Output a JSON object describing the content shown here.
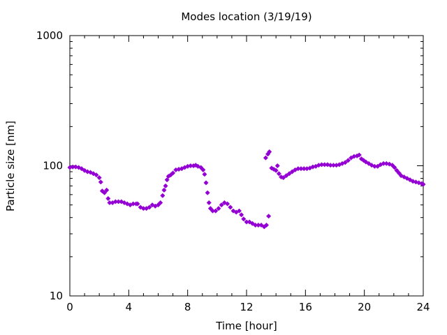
{
  "chart_data": {
    "type": "scatter",
    "title": "Modes location (3/19/19)",
    "xlabel": "Time [hour]",
    "ylabel": "Particle size [nm]",
    "xlim": [
      0,
      24
    ],
    "ylim": [
      10,
      1000
    ],
    "yscale": "log",
    "grid": false,
    "marker_color": "#9400d3",
    "x_ticks": [
      {
        "value": 0,
        "label": "0"
      },
      {
        "value": 4,
        "label": "4"
      },
      {
        "value": 8,
        "label": "8"
      },
      {
        "value": 12,
        "label": "12"
      },
      {
        "value": 16,
        "label": "16"
      },
      {
        "value": 20,
        "label": "20"
      },
      {
        "value": 24,
        "label": "24"
      }
    ],
    "y_ticks": [
      {
        "value": 10,
        "label": "10"
      },
      {
        "value": 100,
        "label": "100"
      },
      {
        "value": 1000,
        "label": "1000"
      }
    ],
    "series": [
      {
        "points": [
          [
            0.0,
            97
          ],
          [
            0.2,
            98
          ],
          [
            0.4,
            98
          ],
          [
            0.6,
            97
          ],
          [
            0.8,
            95
          ],
          [
            1.0,
            92
          ],
          [
            1.2,
            90
          ],
          [
            1.4,
            89
          ],
          [
            1.6,
            87
          ],
          [
            1.8,
            85
          ],
          [
            2.0,
            81
          ],
          [
            2.1,
            75
          ],
          [
            2.2,
            64
          ],
          [
            2.35,
            62
          ],
          [
            2.5,
            65
          ],
          [
            2.6,
            56
          ],
          [
            2.7,
            52
          ],
          [
            2.9,
            52
          ],
          [
            3.1,
            53
          ],
          [
            3.3,
            53
          ],
          [
            3.5,
            53
          ],
          [
            3.7,
            52
          ],
          [
            3.9,
            51
          ],
          [
            4.1,
            50
          ],
          [
            4.3,
            51
          ],
          [
            4.5,
            51
          ],
          [
            4.6,
            51
          ],
          [
            4.8,
            48
          ],
          [
            5.0,
            47
          ],
          [
            5.2,
            47
          ],
          [
            5.4,
            48
          ],
          [
            5.6,
            50
          ],
          [
            5.8,
            49
          ],
          [
            6.0,
            50
          ],
          [
            6.15,
            52
          ],
          [
            6.3,
            59
          ],
          [
            6.4,
            65
          ],
          [
            6.5,
            70
          ],
          [
            6.6,
            78
          ],
          [
            6.7,
            83
          ],
          [
            6.85,
            85
          ],
          [
            7.0,
            88
          ],
          [
            7.2,
            93
          ],
          [
            7.4,
            94
          ],
          [
            7.6,
            95
          ],
          [
            7.8,
            97
          ],
          [
            8.0,
            99
          ],
          [
            8.2,
            100
          ],
          [
            8.4,
            100
          ],
          [
            8.55,
            101
          ],
          [
            8.7,
            99
          ],
          [
            8.9,
            97
          ],
          [
            9.05,
            93
          ],
          [
            9.15,
            86
          ],
          [
            9.25,
            74
          ],
          [
            9.35,
            62
          ],
          [
            9.45,
            52
          ],
          [
            9.55,
            47
          ],
          [
            9.7,
            45
          ],
          [
            9.9,
            45
          ],
          [
            10.1,
            47
          ],
          [
            10.3,
            50
          ],
          [
            10.5,
            52
          ],
          [
            10.7,
            51
          ],
          [
            10.9,
            48
          ],
          [
            11.1,
            45
          ],
          [
            11.3,
            44
          ],
          [
            11.5,
            45
          ],
          [
            11.65,
            42
          ],
          [
            11.8,
            39
          ],
          [
            12.0,
            37
          ],
          [
            12.2,
            37
          ],
          [
            12.4,
            36
          ],
          [
            12.6,
            35
          ],
          [
            12.8,
            35
          ],
          [
            13.0,
            35
          ],
          [
            13.2,
            34
          ],
          [
            13.35,
            35
          ],
          [
            13.5,
            41
          ],
          [
            13.3,
            115
          ],
          [
            13.45,
            123
          ],
          [
            13.55,
            128
          ],
          [
            13.7,
            96
          ],
          [
            13.85,
            94
          ],
          [
            14.0,
            92
          ],
          [
            14.1,
            100
          ],
          [
            14.2,
            87
          ],
          [
            14.35,
            82
          ],
          [
            14.5,
            81
          ],
          [
            14.7,
            84
          ],
          [
            14.9,
            87
          ],
          [
            15.1,
            90
          ],
          [
            15.3,
            93
          ],
          [
            15.5,
            95
          ],
          [
            15.7,
            95
          ],
          [
            15.9,
            95
          ],
          [
            16.1,
            95
          ],
          [
            16.3,
            96
          ],
          [
            16.5,
            98
          ],
          [
            16.7,
            99
          ],
          [
            16.9,
            101
          ],
          [
            17.1,
            102
          ],
          [
            17.3,
            102
          ],
          [
            17.5,
            102
          ],
          [
            17.7,
            101
          ],
          [
            17.9,
            101
          ],
          [
            18.1,
            101
          ],
          [
            18.3,
            102
          ],
          [
            18.5,
            104
          ],
          [
            18.7,
            106
          ],
          [
            18.9,
            110
          ],
          [
            19.1,
            115
          ],
          [
            19.3,
            118
          ],
          [
            19.5,
            119
          ],
          [
            19.65,
            121
          ],
          [
            19.8,
            113
          ],
          [
            19.95,
            110
          ],
          [
            20.1,
            107
          ],
          [
            20.3,
            104
          ],
          [
            20.5,
            101
          ],
          [
            20.7,
            99
          ],
          [
            20.9,
            99
          ],
          [
            21.1,
            102
          ],
          [
            21.3,
            104
          ],
          [
            21.5,
            104
          ],
          [
            21.7,
            103
          ],
          [
            21.9,
            101
          ],
          [
            22.05,
            97
          ],
          [
            22.2,
            92
          ],
          [
            22.35,
            88
          ],
          [
            22.5,
            84
          ],
          [
            22.7,
            82
          ],
          [
            22.9,
            80
          ],
          [
            23.1,
            78
          ],
          [
            23.3,
            76
          ],
          [
            23.5,
            75
          ],
          [
            23.7,
            74
          ],
          [
            23.9,
            73
          ],
          [
            24.0,
            72
          ]
        ]
      }
    ]
  }
}
